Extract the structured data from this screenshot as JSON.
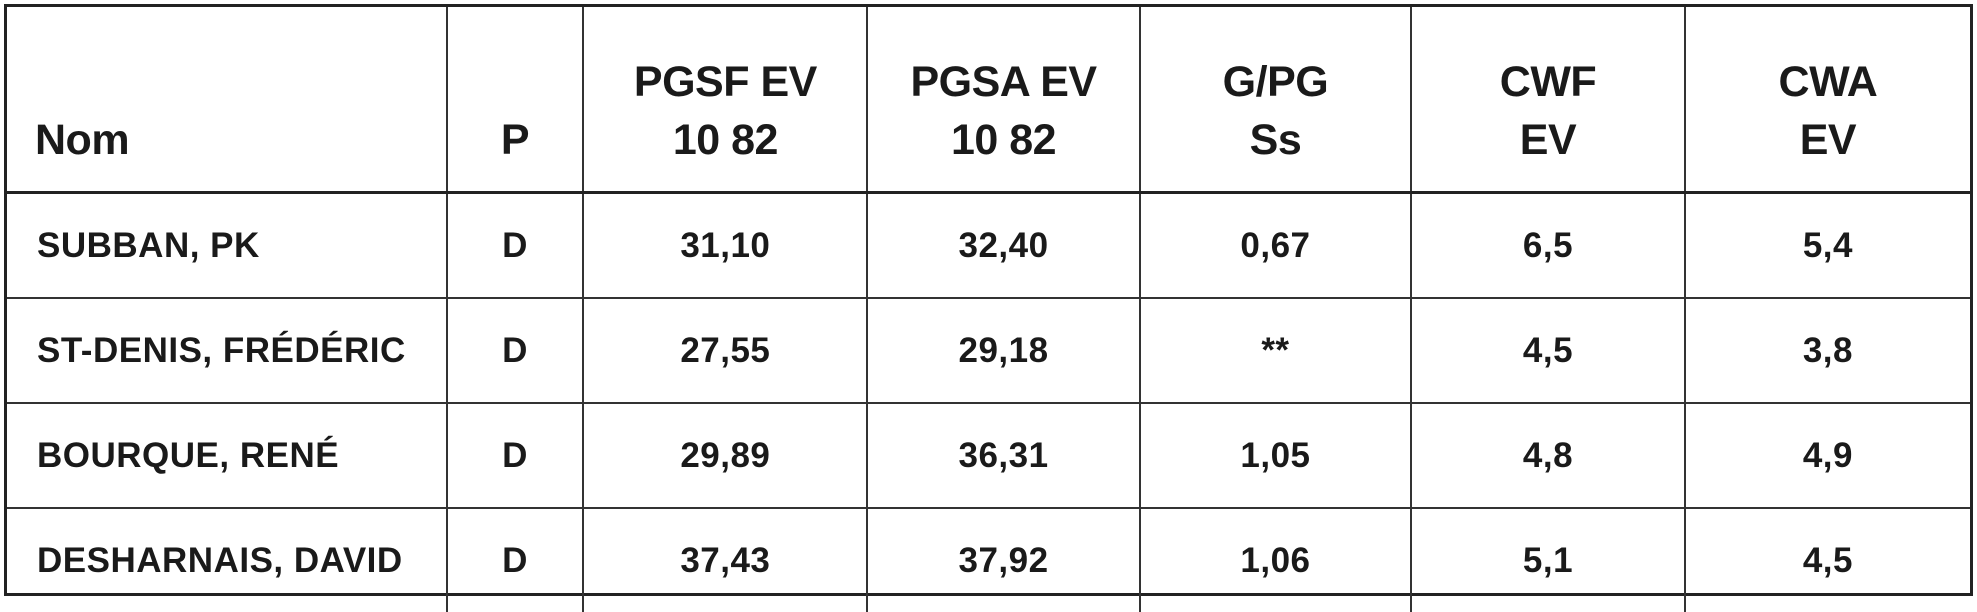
{
  "table": {
    "columns": [
      {
        "key": "nom",
        "lines": [
          "Nom"
        ]
      },
      {
        "key": "p",
        "lines": [
          "P"
        ]
      },
      {
        "key": "pgsf_ev",
        "lines": [
          "PGSF EV",
          "10 82"
        ]
      },
      {
        "key": "pgsa_ev",
        "lines": [
          "PGSA EV",
          "10 82"
        ]
      },
      {
        "key": "g_pg_ss",
        "lines": [
          "G/PG",
          "Ss"
        ]
      },
      {
        "key": "cwf_ev",
        "lines": [
          "CWF",
          "EV"
        ]
      },
      {
        "key": "cwa_ev",
        "lines": [
          "CWA",
          "EV"
        ]
      }
    ],
    "rows": [
      [
        "SUBBAN, PK",
        "D",
        "31,10",
        "32,40",
        "0,67",
        "6,5",
        "5,4"
      ],
      [
        "ST-DENIS, FRÉDÉRIC",
        "D",
        "27,55",
        "29,18",
        "**",
        "4,5",
        "3,8"
      ],
      [
        "BOURQUE, RENÉ",
        "D",
        "29,89",
        "36,31",
        "1,05",
        "4,8",
        "4,9"
      ],
      [
        "DESHARNAIS, DAVID",
        "D",
        "37,43",
        "37,92",
        "1,06",
        "5,1",
        "4,5"
      ]
    ]
  }
}
